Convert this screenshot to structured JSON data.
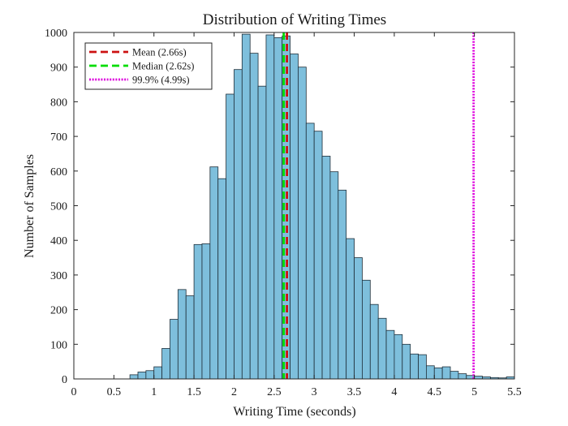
{
  "chart_data": {
    "type": "bar",
    "title": "Distribution of Writing Times",
    "xlabel": "Writing Time (seconds)",
    "ylabel": "Number of Samples",
    "xlim": [
      0,
      5.5
    ],
    "ylim": [
      0,
      1000
    ],
    "xticks": [
      0,
      0.5,
      1,
      1.5,
      2,
      2.5,
      3,
      3.5,
      4,
      4.5,
      5,
      5.5
    ],
    "yticks": [
      0,
      100,
      200,
      300,
      400,
      500,
      600,
      700,
      800,
      900,
      1000
    ],
    "xtick_labels": [
      "0",
      "0.5",
      "1",
      "1.5",
      "2",
      "2.5",
      "3",
      "3.5",
      "4",
      "4.5",
      "5",
      "5.5"
    ],
    "ytick_labels": [
      "0",
      "100",
      "200",
      "300",
      "400",
      "500",
      "600",
      "700",
      "800",
      "900",
      "1000"
    ],
    "grid": false,
    "legend_position": "top-left",
    "bar_color": "#7ebfdc",
    "bin_edges": [
      0.7,
      0.8,
      0.9,
      1.0,
      1.1,
      1.2,
      1.3,
      1.4,
      1.5,
      1.6,
      1.7,
      1.8,
      1.9,
      2.0,
      2.1,
      2.2,
      2.3,
      2.4,
      2.5,
      2.6,
      2.7,
      2.8,
      2.9,
      3.0,
      3.1,
      3.2,
      3.3,
      3.4,
      3.5,
      3.6,
      3.7,
      3.8,
      3.9,
      4.0,
      4.1,
      4.2,
      4.3,
      4.4,
      4.5,
      4.6,
      4.7,
      4.8,
      4.9,
      5.0,
      5.1,
      5.2,
      5.3,
      5.4,
      5.5
    ],
    "values": [
      12,
      20,
      24,
      35,
      88,
      172,
      258,
      240,
      388,
      390,
      612,
      578,
      822,
      893,
      995,
      940,
      845,
      993,
      985,
      990,
      938,
      900,
      738,
      715,
      643,
      598,
      545,
      405,
      350,
      285,
      215,
      175,
      140,
      128,
      100,
      72,
      70,
      38,
      32,
      35,
      22,
      15,
      10,
      8,
      6,
      4,
      3,
      6
    ],
    "series": [
      {
        "name": "Mean (2.66s)",
        "x": 2.66,
        "color": "#cc1111",
        "style": "dashed"
      },
      {
        "name": "Median (2.62s)",
        "x": 2.62,
        "color": "#00dd00",
        "style": "dashed"
      },
      {
        "name": "99.9% (4.99s)",
        "x": 4.99,
        "color": "#dd00dd",
        "style": "dotted"
      }
    ]
  }
}
